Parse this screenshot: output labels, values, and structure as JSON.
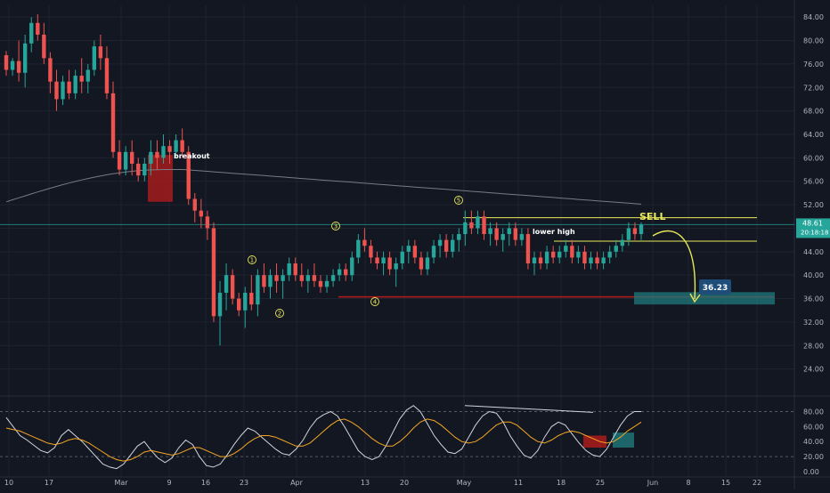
{
  "chart_data": [
    {
      "type": "candlestick",
      "title": "",
      "y_ticks": [
        "84.00",
        "80.00",
        "76.00",
        "72.00",
        "68.00",
        "64.00",
        "60.00",
        "56.00",
        "52.00",
        "48.00",
        "44.00",
        "40.00",
        "36.00",
        "32.00",
        "28.00",
        "24.00"
      ],
      "ylim": [
        20,
        86
      ],
      "x_ticks": [
        "10",
        "17",
        "Mar",
        "9",
        "16",
        "23",
        "Apr",
        "13",
        "20",
        "May",
        "11",
        "18",
        "25",
        "Jun",
        "8",
        "15",
        "22"
      ],
      "last_price": "48.61",
      "countdown": "20:18:18",
      "target_price": "36.23",
      "annotations": [
        "breakout",
        "lower high",
        "SELL"
      ],
      "wave_labels": [
        "1",
        "2",
        "3",
        "4",
        "5"
      ],
      "colors": {
        "up": "#26a69a",
        "down": "#ef5350",
        "ma": "#787b86",
        "guide": "#e8e85a",
        "support": "#b71c1c",
        "target": "#1f7a7c"
      },
      "candles": [
        [
          77.5,
          78.2,
          74.0,
          75.0
        ],
        [
          75,
          77,
          74,
          76.5
        ],
        [
          76.5,
          80,
          73,
          74.5
        ],
        [
          74.5,
          81,
          72,
          79.5
        ],
        [
          79.5,
          84,
          78,
          83
        ],
        [
          83,
          84.5,
          80,
          81
        ],
        [
          81,
          83,
          76,
          77
        ],
        [
          77,
          78,
          71,
          73
        ],
        [
          73,
          75,
          68,
          70
        ],
        [
          70,
          74,
          69,
          73
        ],
        [
          73,
          75,
          70,
          71
        ],
        [
          71,
          75,
          70,
          74
        ],
        [
          74,
          77,
          71,
          73
        ],
        [
          73,
          76,
          71,
          75
        ],
        [
          75,
          80,
          74,
          79
        ],
        [
          79,
          81,
          75,
          77
        ],
        [
          77,
          79,
          70,
          71
        ],
        [
          71,
          73,
          60,
          61
        ],
        [
          61,
          63,
          57,
          58
        ],
        [
          58,
          62,
          57,
          61
        ],
        [
          61,
          63,
          57,
          59
        ],
        [
          59,
          60,
          56,
          57
        ],
        [
          57,
          60,
          56,
          59
        ],
        [
          59,
          63,
          57,
          61
        ],
        [
          61,
          63,
          58,
          60
        ],
        [
          60,
          64,
          59,
          62
        ],
        [
          62,
          63,
          59,
          61
        ],
        [
          61,
          64,
          60,
          63
        ],
        [
          63,
          65,
          60,
          61
        ],
        [
          61,
          62,
          52,
          53
        ],
        [
          53,
          54,
          49,
          51
        ],
        [
          51,
          53,
          48,
          50
        ],
        [
          50,
          51,
          46,
          48
        ],
        [
          48,
          49,
          32,
          33
        ],
        [
          33,
          39,
          28,
          37
        ],
        [
          37,
          42,
          34,
          40
        ],
        [
          40,
          41,
          35,
          36
        ],
        [
          36,
          37,
          33,
          34
        ],
        [
          34,
          38,
          31,
          37
        ],
        [
          37,
          40,
          34,
          35
        ],
        [
          35,
          41,
          33,
          40
        ],
        [
          40,
          42,
          37,
          38
        ],
        [
          38,
          41,
          36,
          40
        ],
        [
          40,
          42,
          37,
          39
        ],
        [
          39,
          41,
          36,
          40
        ],
        [
          40,
          43,
          39,
          42
        ],
        [
          42,
          43,
          39,
          40
        ],
        [
          40,
          42,
          38,
          39
        ],
        [
          39,
          41,
          37,
          40
        ],
        [
          40,
          42,
          38,
          39
        ],
        [
          39,
          40,
          37,
          38
        ],
        [
          38,
          40,
          37,
          39
        ],
        [
          39,
          41,
          38,
          40
        ],
        [
          40,
          42,
          39,
          41
        ],
        [
          41,
          42,
          39,
          40
        ],
        [
          40,
          44,
          39,
          43
        ],
        [
          43,
          47,
          42,
          46
        ],
        [
          46,
          48,
          44,
          45
        ],
        [
          45,
          46,
          42,
          43
        ],
        [
          43,
          44,
          41,
          42
        ],
        [
          42,
          44,
          40,
          43
        ],
        [
          43,
          44,
          40,
          41
        ],
        [
          41,
          43,
          38,
          42
        ],
        [
          42,
          45,
          41,
          44
        ],
        [
          44,
          46,
          42,
          45
        ],
        [
          45,
          46,
          42,
          43
        ],
        [
          43,
          44,
          40,
          41
        ],
        [
          41,
          44,
          40,
          43
        ],
        [
          43,
          46,
          42,
          45
        ],
        [
          45,
          47,
          43,
          46
        ],
        [
          46,
          47,
          43,
          44
        ],
        [
          44,
          47,
          43,
          46
        ],
        [
          46,
          48,
          44,
          47
        ],
        [
          47,
          51,
          45,
          49
        ],
        [
          49,
          51,
          47,
          48
        ],
        [
          48,
          51,
          47,
          50
        ],
        [
          50,
          51,
          46,
          47
        ],
        [
          47,
          49,
          45,
          48
        ],
        [
          48,
          49,
          45,
          46
        ],
        [
          46,
          48,
          44,
          47
        ],
        [
          47,
          49,
          45,
          48
        ],
        [
          48,
          49,
          45,
          46
        ],
        [
          46,
          48,
          45,
          47
        ],
        [
          47,
          48,
          41,
          42
        ],
        [
          42,
          44,
          40,
          43
        ],
        [
          43,
          44,
          41,
          42
        ],
        [
          42,
          45,
          41,
          44
        ],
        [
          44,
          45,
          42,
          43
        ],
        [
          43,
          45,
          42,
          44
        ],
        [
          44,
          46,
          43,
          45
        ],
        [
          45,
          46,
          42,
          43
        ],
        [
          43,
          45,
          42,
          44
        ],
        [
          44,
          45,
          41,
          42
        ],
        [
          42,
          44,
          41,
          43
        ],
        [
          43,
          44,
          41,
          42
        ],
        [
          42,
          44,
          41,
          43
        ],
        [
          43,
          45,
          42,
          44
        ],
        [
          44,
          46,
          43,
          45
        ],
        [
          45,
          47,
          44,
          46
        ],
        [
          46,
          49,
          45,
          48
        ],
        [
          48,
          49,
          46,
          47
        ],
        [
          47,
          49,
          46,
          48.61
        ]
      ]
    },
    {
      "type": "line",
      "title": "",
      "y_ticks": [
        "80.00",
        "60.00",
        "40.00",
        "20.00",
        "0.00"
      ],
      "ylim": [
        -6,
        96
      ],
      "series": [
        {
          "values": [
            72,
            60,
            48,
            42,
            35,
            28,
            25,
            32,
            48,
            56,
            48,
            40,
            30,
            20,
            10,
            6,
            4,
            10,
            22,
            34,
            40,
            28,
            18,
            12,
            18,
            32,
            42,
            36,
            20,
            8,
            6,
            10,
            22,
            36,
            48,
            58,
            54,
            46,
            38,
            30,
            24,
            22,
            30,
            42,
            58,
            70,
            76,
            80,
            74,
            60,
            44,
            28,
            20,
            16,
            20,
            34,
            52,
            70,
            82,
            88,
            80,
            64,
            48,
            36,
            26,
            24,
            30,
            46,
            62,
            74,
            80,
            78,
            66,
            48,
            34,
            22,
            18,
            28,
            46,
            60,
            66,
            62,
            50,
            38,
            28,
            22,
            20,
            30,
            46,
            62,
            74,
            80,
            80
          ]
        },
        {
          "values": [
            58,
            56,
            54,
            50,
            46,
            42,
            38,
            36,
            38,
            42,
            44,
            42,
            38,
            32,
            26,
            20,
            16,
            14,
            16,
            20,
            26,
            28,
            26,
            24,
            22,
            24,
            28,
            32,
            32,
            28,
            24,
            20,
            20,
            24,
            30,
            38,
            44,
            48,
            48,
            46,
            42,
            38,
            34,
            34,
            38,
            46,
            54,
            62,
            68,
            70,
            66,
            60,
            52,
            44,
            38,
            34,
            34,
            40,
            48,
            58,
            66,
            70,
            68,
            62,
            54,
            46,
            40,
            38,
            40,
            46,
            54,
            62,
            66,
            66,
            62,
            54,
            46,
            40,
            38,
            42,
            48,
            52,
            54,
            52,
            48,
            44,
            40,
            38,
            40,
            46,
            54,
            60,
            66
          ]
        }
      ]
    }
  ]
}
